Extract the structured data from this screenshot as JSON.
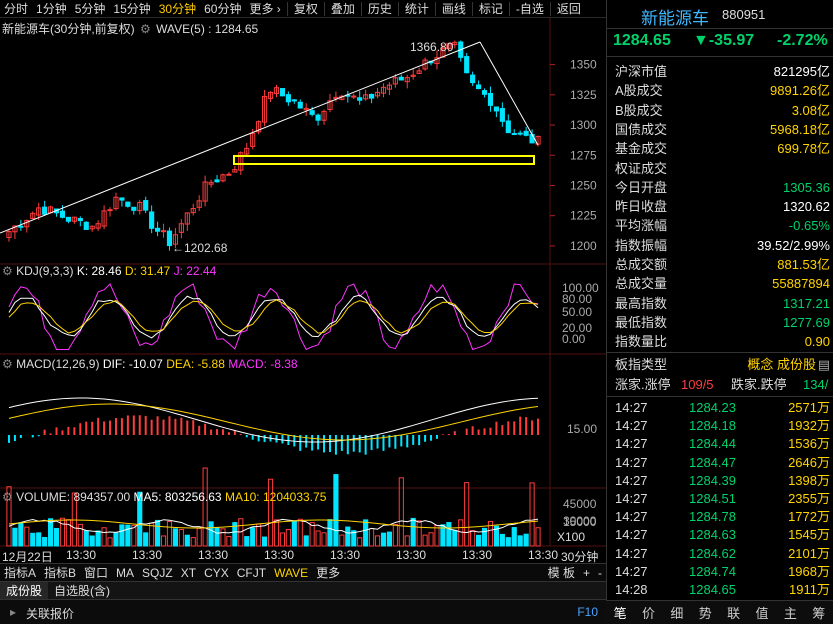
{
  "toolbar": {
    "periods": [
      "分时",
      "1分钟",
      "5分钟",
      "15分钟",
      "30分钟",
      "60分钟",
      "更多 ›"
    ],
    "active_period": "30分钟",
    "actions": [
      "复权",
      "叠加",
      "历史",
      "统计",
      "画线",
      "标记",
      "-自选",
      "返回"
    ]
  },
  "main_chart": {
    "title": "新能源车(30分钟,前复权)",
    "indicator": "WAVE(5) : 1284.65",
    "high_label": "1366.80",
    "low_label": "←1202.68",
    "y_ticks": [
      "1350",
      "1325",
      "1300",
      "1275",
      "1250",
      "1225",
      "1200"
    ],
    "y_tick_values": [
      1350,
      1325,
      1300,
      1275,
      1250,
      1225,
      1200
    ],
    "price_range": [
      1190,
      1372
    ]
  },
  "kdj": {
    "name": "KDJ(9,3,3)",
    "k": "K: 28.46",
    "d": "D: 31.47",
    "j": "J: 22.44",
    "y_ticks": [
      "100.00",
      "80.00",
      "50.00",
      "20.00",
      "0.00"
    ],
    "colors": {
      "k": "#ffffff",
      "d": "#ffd400",
      "j": "#ff33ff"
    }
  },
  "macd": {
    "name": "MACD(12,26,9)",
    "dif": "DIF: -10.07",
    "dea": "DEA: -5.88",
    "macd": "MACD: -8.38",
    "y_tick": "15.00"
  },
  "volume": {
    "name": "VOLUME: 894357.00",
    "ma5": "MA5: 803256.63",
    "ma10": "MA10: 1204033.75",
    "y_ticks": [
      "45000",
      "30000",
      "15000"
    ],
    "unit": "X100"
  },
  "x_axis": {
    "labels": [
      "12月22日",
      "13:30",
      "13:30",
      "13:30",
      "13:30",
      "13:30",
      "13:30",
      "13:30",
      "13:30"
    ],
    "period": "30分钟"
  },
  "bottom_bar": {
    "items": [
      "指标A",
      "指标B",
      "窗口",
      "MA",
      "SQJZ",
      "XT",
      "CYX",
      "CFJT",
      "WAVE",
      "更多"
    ],
    "active": "WAVE",
    "right": [
      "模 板",
      "+",
      "-"
    ]
  },
  "tabs": [
    "成份股",
    "自选股(含)"
  ],
  "status_bar": {
    "label": "关联报价",
    "key": "F10"
  },
  "quote": {
    "name": "新能源车",
    "code": "880951",
    "price": "1284.65",
    "change": "▼-35.97",
    "pct": "-2.72%"
  },
  "stats": [
    {
      "k": "沪深市值",
      "v": "821295亿",
      "c": "white"
    },
    {
      "k": "A股成交",
      "v": "9891.26亿",
      "c": "yellow"
    },
    {
      "k": "B股成交",
      "v": "3.08亿",
      "c": "yellow"
    },
    {
      "k": "国债成交",
      "v": "5968.18亿",
      "c": "yellow"
    },
    {
      "k": "基金成交",
      "v": "699.78亿",
      "c": "yellow"
    },
    {
      "k": "权证成交",
      "v": "",
      "c": "white"
    },
    {
      "k": "今日开盘",
      "v": "1305.36",
      "c": "green"
    },
    {
      "k": "昨日收盘",
      "v": "1320.62",
      "c": "white"
    },
    {
      "k": "平均涨幅",
      "v": "-0.65%",
      "c": "green"
    },
    {
      "k": "指数振幅",
      "v": "39.52/2.99%",
      "c": "white"
    },
    {
      "k": "总成交额",
      "v": "881.53亿",
      "c": "yellow"
    },
    {
      "k": "总成交量",
      "v": "55887894",
      "c": "yellow"
    },
    {
      "k": "最高指数",
      "v": "1317.21",
      "c": "green"
    },
    {
      "k": "最低指数",
      "v": "1277.69",
      "c": "green"
    },
    {
      "k": "指数量比",
      "v": "0.90",
      "c": "yellow"
    }
  ],
  "board": {
    "k": "板指类型",
    "v": "概念 成份股",
    "icon": "list-icon"
  },
  "updown": {
    "up_label": "涨家.涨停",
    "up_value": "109/5",
    "down_label": "跌家.跌停",
    "down_value": "134/"
  },
  "ticks": [
    {
      "t": "14:27",
      "p": "1284.23",
      "v": "2571万"
    },
    {
      "t": "14:27",
      "p": "1284.18",
      "v": "1932万"
    },
    {
      "t": "14:27",
      "p": "1284.44",
      "v": "1536万"
    },
    {
      "t": "14:27",
      "p": "1284.47",
      "v": "2646万"
    },
    {
      "t": "14:27",
      "p": "1284.39",
      "v": "1398万"
    },
    {
      "t": "14:27",
      "p": "1284.51",
      "v": "2355万"
    },
    {
      "t": "14:27",
      "p": "1284.78",
      "v": "1772万"
    },
    {
      "t": "14:27",
      "p": "1284.63",
      "v": "1545万"
    },
    {
      "t": "14:27",
      "p": "1284.62",
      "v": "2101万"
    },
    {
      "t": "14:27",
      "p": "1284.74",
      "v": "1968万"
    },
    {
      "t": "14:28",
      "p": "1284.65",
      "v": "1911万"
    }
  ],
  "rt_tabs": [
    "笔",
    "价",
    "细",
    "势",
    "联",
    "值",
    "主",
    "筹"
  ],
  "rt_active": "笔",
  "colors": {
    "up": "#ff3c3c",
    "down": "#00e5ff",
    "grid": "#2a0000",
    "highlight": "#ffff00"
  }
}
